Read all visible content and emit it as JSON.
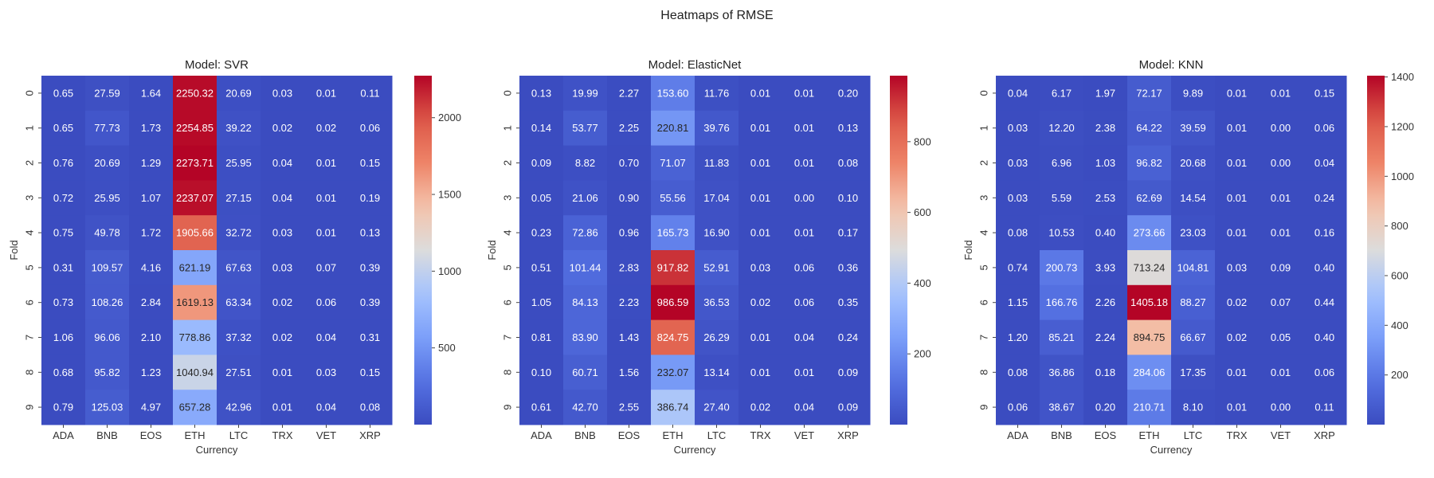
{
  "figure_title": "Heatmaps of RMSE",
  "chart_data": [
    {
      "type": "heatmap",
      "title": "Model: SVR",
      "xlabel": "Currency",
      "ylabel": "Fold",
      "x": [
        "ADA",
        "BNB",
        "EOS",
        "ETH",
        "LTC",
        "TRX",
        "VET",
        "XRP"
      ],
      "y": [
        "0",
        "1",
        "2",
        "3",
        "4",
        "5",
        "6",
        "7",
        "8",
        "9"
      ],
      "values": [
        [
          0.65,
          27.59,
          1.64,
          2250.32,
          20.69,
          0.03,
          0.01,
          0.11
        ],
        [
          0.65,
          77.73,
          1.73,
          2254.85,
          39.22,
          0.02,
          0.02,
          0.06
        ],
        [
          0.76,
          20.69,
          1.29,
          2273.71,
          25.95,
          0.04,
          0.01,
          0.15
        ],
        [
          0.72,
          25.95,
          1.07,
          2237.07,
          27.15,
          0.04,
          0.01,
          0.19
        ],
        [
          0.75,
          49.78,
          1.72,
          1905.66,
          32.72,
          0.03,
          0.01,
          0.13
        ],
        [
          0.31,
          109.57,
          4.16,
          621.19,
          67.63,
          0.03,
          0.07,
          0.39
        ],
        [
          0.73,
          108.26,
          2.84,
          1619.13,
          63.34,
          0.02,
          0.06,
          0.39
        ],
        [
          1.06,
          96.06,
          2.1,
          778.86,
          37.32,
          0.02,
          0.04,
          0.31
        ],
        [
          0.68,
          95.82,
          1.23,
          1040.94,
          27.51,
          0.01,
          0.03,
          0.15
        ],
        [
          0.79,
          125.03,
          4.97,
          657.28,
          42.96,
          0.01,
          0.04,
          0.08
        ]
      ],
      "value_range": [
        0.01,
        2273.71
      ],
      "colorbar_ticks": [
        500,
        1000,
        1500,
        2000
      ],
      "colormap": "coolwarm"
    },
    {
      "type": "heatmap",
      "title": "Model: ElasticNet",
      "xlabel": "Currency",
      "ylabel": "Fold",
      "x": [
        "ADA",
        "BNB",
        "EOS",
        "ETH",
        "LTC",
        "TRX",
        "VET",
        "XRP"
      ],
      "y": [
        "0",
        "1",
        "2",
        "3",
        "4",
        "5",
        "6",
        "7",
        "8",
        "9"
      ],
      "values": [
        [
          0.13,
          19.99,
          2.27,
          153.6,
          11.76,
          0.01,
          0.01,
          0.2
        ],
        [
          0.14,
          53.77,
          2.25,
          220.81,
          39.76,
          0.01,
          0.01,
          0.13
        ],
        [
          0.09,
          8.82,
          0.7,
          71.07,
          11.83,
          0.01,
          0.01,
          0.08
        ],
        [
          0.05,
          21.06,
          0.9,
          55.56,
          17.04,
          0.01,
          0.0,
          0.1
        ],
        [
          0.23,
          72.86,
          0.96,
          165.73,
          16.9,
          0.01,
          0.01,
          0.17
        ],
        [
          0.51,
          101.44,
          2.83,
          917.82,
          52.91,
          0.03,
          0.06,
          0.36
        ],
        [
          1.05,
          84.13,
          2.23,
          986.59,
          36.53,
          0.02,
          0.06,
          0.35
        ],
        [
          0.81,
          83.9,
          1.43,
          824.75,
          26.29,
          0.01,
          0.04,
          0.24
        ],
        [
          0.1,
          60.71,
          1.56,
          232.07,
          13.14,
          0.01,
          0.01,
          0.09
        ],
        [
          0.61,
          42.7,
          2.55,
          386.74,
          27.4,
          0.02,
          0.04,
          0.09
        ]
      ],
      "value_range": [
        0.0,
        986.59
      ],
      "colorbar_ticks": [
        200,
        400,
        600,
        800
      ],
      "colormap": "coolwarm"
    },
    {
      "type": "heatmap",
      "title": "Model: KNN",
      "xlabel": "Currency",
      "ylabel": "Fold",
      "x": [
        "ADA",
        "BNB",
        "EOS",
        "ETH",
        "LTC",
        "TRX",
        "VET",
        "XRP"
      ],
      "y": [
        "0",
        "1",
        "2",
        "3",
        "4",
        "5",
        "6",
        "7",
        "8",
        "9"
      ],
      "values": [
        [
          0.04,
          6.17,
          1.97,
          72.17,
          9.89,
          0.01,
          0.01,
          0.15
        ],
        [
          0.03,
          12.2,
          2.38,
          64.22,
          39.59,
          0.01,
          0.0,
          0.06
        ],
        [
          0.03,
          6.96,
          1.03,
          96.82,
          20.68,
          0.01,
          0.0,
          0.04
        ],
        [
          0.03,
          5.59,
          2.53,
          62.69,
          14.54,
          0.01,
          0.01,
          0.24
        ],
        [
          0.08,
          10.53,
          0.4,
          273.66,
          23.03,
          0.01,
          0.01,
          0.16
        ],
        [
          0.74,
          200.73,
          3.93,
          713.24,
          104.81,
          0.03,
          0.09,
          0.4
        ],
        [
          1.15,
          166.76,
          2.26,
          1405.18,
          88.27,
          0.02,
          0.07,
          0.44
        ],
        [
          1.2,
          85.21,
          2.24,
          894.75,
          66.67,
          0.02,
          0.05,
          0.4
        ],
        [
          0.08,
          36.86,
          0.18,
          284.06,
          17.35,
          0.01,
          0.01,
          0.06
        ],
        [
          0.06,
          38.67,
          0.2,
          210.71,
          8.1,
          0.01,
          0.0,
          0.11
        ]
      ],
      "value_range": [
        0.0,
        1405.18
      ],
      "colorbar_ticks": [
        200,
        400,
        600,
        800,
        1000,
        1200,
        1400
      ],
      "colormap": "coolwarm"
    }
  ]
}
